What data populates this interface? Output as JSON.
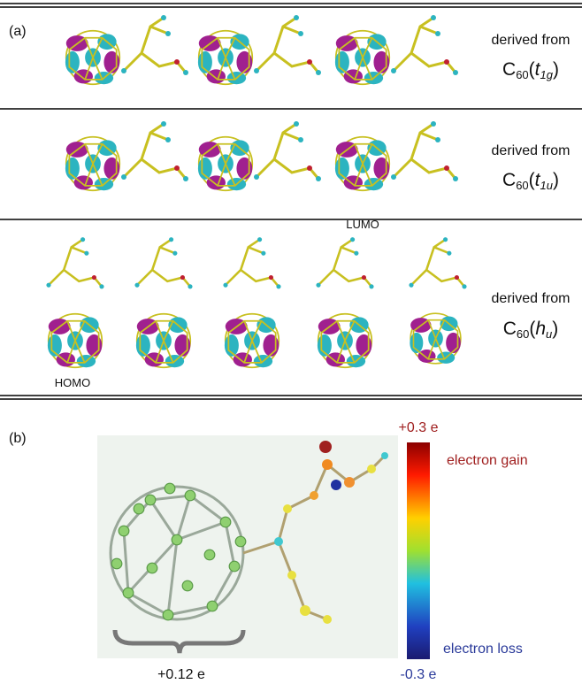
{
  "panel_a": {
    "label": "(a)",
    "rows": [
      {
        "caption": "derived from",
        "species": {
          "base": "C",
          "subscript": "60",
          "open": "(",
          "symmetry": "t",
          "symmetry_subscript": "1g",
          "close": ")"
        }
      },
      {
        "caption": "derived from",
        "species": {
          "base": "C",
          "subscript": "60",
          "open": "(",
          "symmetry": "t",
          "symmetry_subscript": "1u",
          "close": ")"
        },
        "orbital_label": "LUMO"
      },
      {
        "caption": "derived from",
        "species": {
          "base": "C",
          "subscript": "60",
          "open": "(",
          "symmetry": "h",
          "symmetry_subscript": "u",
          "close": ")"
        },
        "orbital_label": "HOMO"
      }
    ]
  },
  "panel_b": {
    "label": "(b)",
    "colorbar": {
      "top_label": "+0.3 e",
      "bottom_label": "-0.3 e",
      "top_caption": "electron gain",
      "bottom_caption": "electron loss"
    },
    "fullerene_charge": "+0.12 e"
  }
}
